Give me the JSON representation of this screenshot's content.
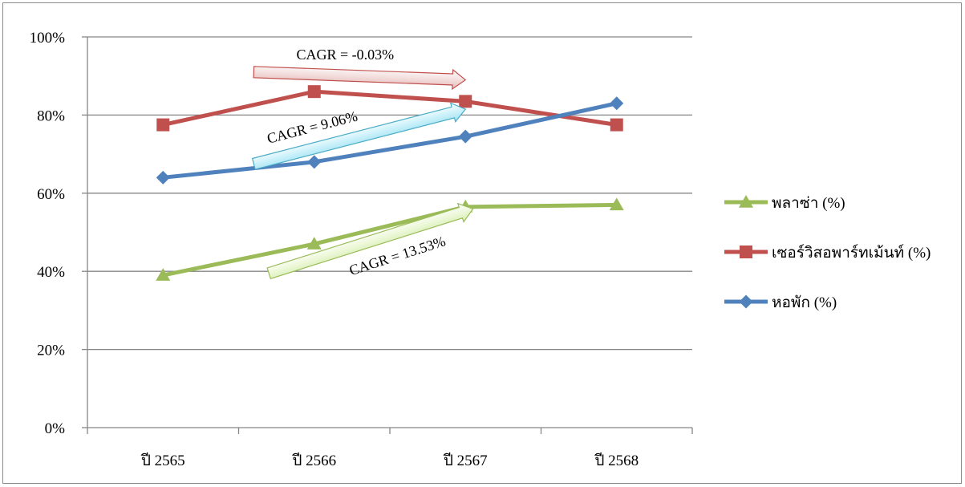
{
  "chart_data": {
    "type": "line",
    "categories": [
      "ปี 2565",
      "ปี 2566",
      "ปี 2567",
      "ปี 2568"
    ],
    "y_ticks": [
      "0%",
      "20%",
      "40%",
      "60%",
      "80%",
      "100%"
    ],
    "ylim": [
      0,
      100
    ],
    "grid": true,
    "legend_position": "right",
    "series": [
      {
        "name": "พลาซ่า (%)",
        "values": [
          39,
          47,
          56.5,
          57
        ],
        "color": "#9BBB59",
        "marker": "triangle"
      },
      {
        "name": "เซอร์วิสอพาร์ทเม้นท์ (%)",
        "values": [
          77.5,
          86,
          83.5,
          77.5
        ],
        "color": "#C0504D",
        "marker": "square"
      },
      {
        "name": "หอพัก (%)",
        "values": [
          64,
          68,
          74.5,
          83
        ],
        "color": "#4F81BD",
        "marker": "diamond"
      }
    ],
    "annotations": [
      {
        "text": "CAGR = -0.03%",
        "series": "เซอร์วิสอพาร์ทเม้นท์ (%)",
        "fill": "#F2DCDB",
        "stroke": "#C0504D",
        "from": [
          0.6,
          91
        ],
        "to": [
          2.0,
          89
        ]
      },
      {
        "text": "CAGR = 9.06%",
        "series": "หอพัก (%)",
        "fill": "#CCF2FA",
        "stroke": "#4BACC6",
        "from": [
          0.6,
          67.5
        ],
        "to": [
          2.0,
          81.5
        ]
      },
      {
        "text": "CAGR = 13.53%",
        "series": "พลาซ่า (%)",
        "fill": "#EAF7D5",
        "stroke": "#9BBB59",
        "from": [
          0.7,
          39.5
        ],
        "to": [
          2.05,
          56
        ]
      }
    ]
  }
}
